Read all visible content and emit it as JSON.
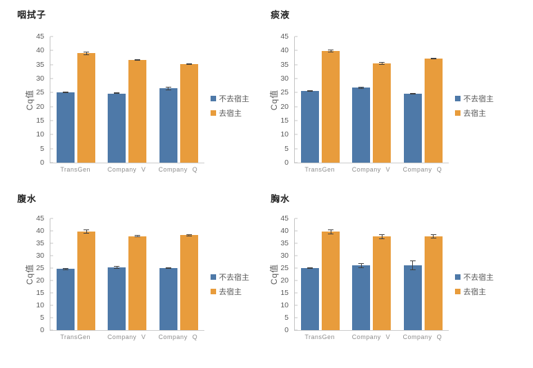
{
  "page": {
    "background": "#ffffff"
  },
  "colors": {
    "series_blue": "#4e79a8",
    "series_orange": "#e89c3c",
    "axis_line": "#c4c4c4",
    "tick_text": "#595959",
    "xlabel_text": "#8c8c8c",
    "title_text": "#212121",
    "error_bar": "#3f3f3f"
  },
  "legend": {
    "items": [
      {
        "label": "不去宿主",
        "color": "#4e79a8"
      },
      {
        "label": "去宿主",
        "color": "#e89c3c"
      }
    ]
  },
  "chart_data": [
    {
      "type": "bar",
      "title": "咽拭子",
      "ylabel": "Cq值",
      "xlabel": "",
      "categories": [
        "TransGen",
        "Company V",
        "Company Q"
      ],
      "ylim": [
        0,
        45
      ],
      "ytick_step": 5,
      "grid": false,
      "legend_position": "right",
      "series": [
        {
          "name": "不去宿主",
          "color": "#4e79a8",
          "values": [
            25.0,
            24.7,
            26.5
          ],
          "errors": [
            0.2,
            0.2,
            0.6
          ]
        },
        {
          "name": "去宿主",
          "color": "#e89c3c",
          "values": [
            39.0,
            36.7,
            35.2
          ],
          "errors": [
            0.7,
            0.3,
            0.3
          ]
        }
      ]
    },
    {
      "type": "bar",
      "title": "痰液",
      "ylabel": "Cq值",
      "xlabel": "",
      "categories": [
        "TransGen",
        "Company V",
        "Company Q"
      ],
      "ylim": [
        0,
        45
      ],
      "ytick_step": 5,
      "grid": false,
      "legend_position": "right",
      "series": [
        {
          "name": "不去宿主",
          "color": "#4e79a8",
          "values": [
            25.6,
            26.7,
            24.5
          ],
          "errors": [
            0.2,
            0.3,
            0.2
          ]
        },
        {
          "name": "去宿主",
          "color": "#e89c3c",
          "values": [
            39.8,
            35.4,
            37.2
          ],
          "errors": [
            0.5,
            0.4,
            0.3
          ]
        }
      ]
    },
    {
      "type": "bar",
      "title": "腹水",
      "ylabel": "Cq值",
      "xlabel": "",
      "categories": [
        "TransGen",
        "Company V",
        "Company Q"
      ],
      "ylim": [
        0,
        45
      ],
      "ytick_step": 5,
      "grid": false,
      "legend_position": "right",
      "series": [
        {
          "name": "不去宿主",
          "color": "#4e79a8",
          "values": [
            24.6,
            25.3,
            25.0
          ],
          "errors": [
            0.5,
            0.5,
            0.3
          ]
        },
        {
          "name": "去宿主",
          "color": "#e89c3c",
          "values": [
            39.7,
            37.9,
            38.2
          ],
          "errors": [
            0.8,
            0.3,
            0.3
          ]
        }
      ]
    },
    {
      "type": "bar",
      "title": "胸水",
      "ylabel": "Cq值",
      "xlabel": "",
      "categories": [
        "TransGen",
        "Company V",
        "Company Q"
      ],
      "ylim": [
        0,
        45
      ],
      "ytick_step": 5,
      "grid": false,
      "legend_position": "right",
      "series": [
        {
          "name": "不去宿主",
          "color": "#4e79a8",
          "values": [
            24.9,
            26.0,
            26.2
          ],
          "errors": [
            0.3,
            1.0,
            2.0
          ]
        },
        {
          "name": "去宿主",
          "color": "#e89c3c",
          "values": [
            39.7,
            37.7,
            37.7
          ],
          "errors": [
            1.0,
            1.0,
            0.8
          ]
        }
      ]
    }
  ]
}
